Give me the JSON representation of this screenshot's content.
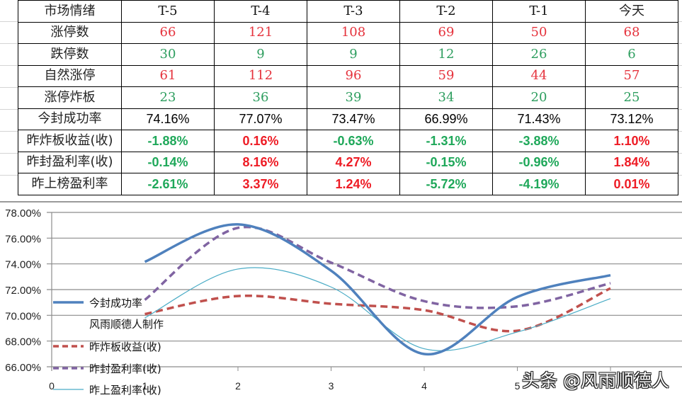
{
  "table": {
    "header": [
      "市场情绪",
      "T-5",
      "T-4",
      "T-3",
      "T-2",
      "T-1",
      "今天"
    ],
    "rows": [
      {
        "label": "涨停数",
        "style": "num",
        "values": [
          "66",
          "121",
          "108",
          "69",
          "50",
          "68"
        ],
        "colors": [
          "red",
          "red",
          "red",
          "red",
          "red",
          "red"
        ]
      },
      {
        "label": "跌停数",
        "style": "num",
        "values": [
          "30",
          "9",
          "9",
          "12",
          "26",
          "6"
        ],
        "colors": [
          "green",
          "green",
          "green",
          "green",
          "green",
          "green"
        ]
      },
      {
        "label": "自然涨停",
        "style": "num",
        "values": [
          "61",
          "112",
          "96",
          "59",
          "44",
          "57"
        ],
        "colors": [
          "red",
          "red",
          "red",
          "red",
          "red",
          "red"
        ]
      },
      {
        "label": "涨停炸板",
        "style": "num",
        "values": [
          "23",
          "36",
          "39",
          "34",
          "20",
          "25"
        ],
        "colors": [
          "green",
          "green",
          "green",
          "green",
          "green",
          "green"
        ]
      },
      {
        "label": "今封成功率",
        "style": "pct",
        "values": [
          "74.16%",
          "77.07%",
          "73.47%",
          "66.99%",
          "71.43%",
          "73.12%"
        ],
        "colors": [
          "black",
          "black",
          "black",
          "black",
          "black",
          "black"
        ]
      },
      {
        "label": "昨炸板收益(收)",
        "style": "pctb",
        "values": [
          "-1.88%",
          "0.16%",
          "-0.63%",
          "-1.31%",
          "-3.88%",
          "1.10%"
        ],
        "colors": [
          "green",
          "red",
          "green",
          "green",
          "green",
          "red"
        ]
      },
      {
        "label": "昨封盈利率(收)",
        "style": "pctb",
        "values": [
          "-0.14%",
          "8.16%",
          "4.27%",
          "-0.15%",
          "-0.96%",
          "1.84%"
        ],
        "colors": [
          "green",
          "red",
          "red",
          "green",
          "green",
          "red"
        ]
      },
      {
        "label": "昨上榜盈利率",
        "style": "pctb",
        "values": [
          "-2.61%",
          "3.37%",
          "1.24%",
          "-5.72%",
          "-4.19%",
          "0.01%"
        ],
        "colors": [
          "green",
          "red",
          "red",
          "green",
          "green",
          "red"
        ]
      }
    ]
  },
  "chart_data": {
    "type": "line",
    "title": "",
    "xlabel": "",
    "ylabel": "",
    "x": [
      1,
      2,
      3,
      4,
      5,
      6
    ],
    "xticks": [
      "0",
      "1",
      "2",
      "3",
      "4",
      "5"
    ],
    "xlim": [
      0,
      6
    ],
    "yticks": [
      "78.00%",
      "76.00%",
      "74.00%",
      "72.00%",
      "70.00%",
      "68.00%",
      "66.00%"
    ],
    "ylim": [
      66,
      78
    ],
    "grid": true,
    "smooth": true,
    "legend_position": "left-inside",
    "series": [
      {
        "name": "今封成功率",
        "color": "#4F81BD",
        "dash": "solid",
        "width": 3.5,
        "values": [
          74.16,
          77.07,
          73.47,
          66.99,
          71.43,
          73.12
        ]
      },
      {
        "name": "昨炸板收益(收)",
        "color": "#C0504D",
        "dash": "dashed",
        "width": 3.5,
        "values": [
          70.1,
          71.5,
          70.9,
          70.4,
          68.8,
          72.1
        ]
      },
      {
        "name": "昨封盈利率(收)",
        "color": "#8064A2",
        "dash": "dashed",
        "width": 3.5,
        "values": [
          71.2,
          76.8,
          74.1,
          71.1,
          70.7,
          72.5
        ]
      },
      {
        "name": "昨上盈利率(收)",
        "color": "#4BACC6",
        "dash": "solid",
        "width": 1.2,
        "values": [
          69.8,
          73.6,
          72.2,
          67.4,
          68.7,
          71.3
        ]
      }
    ],
    "annotations": [
      "风雨顺德人制作"
    ]
  },
  "legend": {
    "items": [
      "今封成功率",
      "风雨顺德人制作",
      "昨炸板收益(收)",
      "昨封盈利率(收)",
      "昨上盈利率(收)"
    ]
  },
  "watermark": "头条 @风雨顺德人",
  "colors": {
    "red": "#e5323c",
    "green": "#2e9e5f",
    "gridline": "#8c8c8c"
  }
}
